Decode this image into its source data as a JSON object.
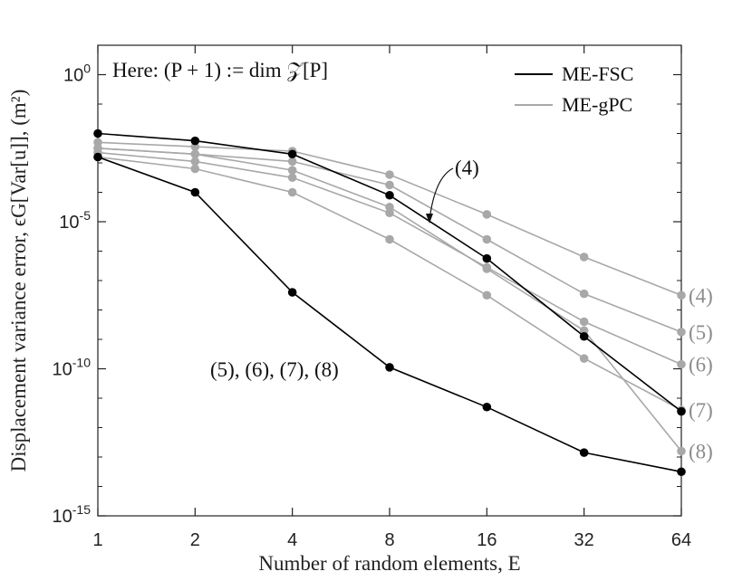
{
  "chart_data": {
    "type": "line",
    "xscale": "log2",
    "yscale": "log10",
    "x_ticks": [
      1,
      2,
      4,
      8,
      16,
      32,
      64
    ],
    "x_tick_labels": [
      "1",
      "2",
      "4",
      "8",
      "16",
      "32",
      "64"
    ],
    "y_ticks": [
      {
        "exp": 0,
        "base": "10",
        "power": "0"
      },
      {
        "exp": -5,
        "base": "10",
        "power": "-5"
      },
      {
        "exp": -10,
        "base": "10",
        "power": "-10"
      },
      {
        "exp": -15,
        "base": "10",
        "power": "-15"
      }
    ],
    "ylim_exp": [
      -15,
      1
    ],
    "xlabel": "Number of random elements, E",
    "ylabel": "Displacement variance error, ϵG[Var[u]], (m²)",
    "annotation": "Here: (P + 1) := dim 𝒵[P]",
    "legend": {
      "position": "top-right",
      "entries": [
        {
          "name": "ME-FSC",
          "color": "#000000"
        },
        {
          "name": "ME-gPC",
          "color": "#a8a8a8"
        }
      ]
    },
    "colors": {
      "fsc": "#000000",
      "gpc": "#a8a8a8",
      "anno_fsc": "#111111",
      "anno_gpc": "#8c8c8c"
    },
    "series": [
      {
        "name": "ME-FSC",
        "order_label": "(4)",
        "x": [
          1,
          2,
          4,
          8,
          16,
          32,
          64
        ],
        "log10_y": [
          -2.0,
          -2.25,
          -2.7,
          -4.1,
          -6.25,
          -8.9,
          -11.45
        ]
      },
      {
        "name": "ME-FSC",
        "order_label": "(5), (6), (7), (8)",
        "x": [
          1,
          2,
          4,
          8,
          16,
          32,
          64
        ],
        "log10_y": [
          -2.8,
          -4.0,
          -7.4,
          -9.95,
          -11.3,
          -12.85,
          -13.5
        ]
      },
      {
        "name": "ME-gPC",
        "order_label": "(4)",
        "x": [
          1,
          2,
          4,
          8,
          16,
          32,
          64
        ],
        "log10_y": [
          -2.3,
          -2.45,
          -2.6,
          -3.4,
          -4.75,
          -6.2,
          -7.5
        ]
      },
      {
        "name": "ME-gPC",
        "order_label": "(5)",
        "x": [
          1,
          2,
          4,
          8,
          16,
          32,
          64
        ],
        "log10_y": [
          -2.5,
          -2.7,
          -2.95,
          -3.75,
          -5.6,
          -7.45,
          -8.75
        ]
      },
      {
        "name": "ME-gPC",
        "order_label": "(6)",
        "x": [
          1,
          2,
          4,
          8,
          16,
          32,
          64
        ],
        "log10_y": [
          -2.65,
          -2.95,
          -3.5,
          -4.7,
          -6.55,
          -8.4,
          -9.85
        ]
      },
      {
        "name": "ME-gPC",
        "order_label": "(7)",
        "x": [
          1,
          2,
          4,
          8,
          16,
          32,
          64
        ],
        "log10_y": [
          -2.8,
          -3.2,
          -4.0,
          -5.6,
          -7.5,
          -9.65,
          -11.4
        ]
      },
      {
        "name": "ME-gPC",
        "order_label": "(8)",
        "x": [
          1,
          2,
          4,
          8,
          16,
          32,
          64
        ],
        "log10_y": [
          -2.5,
          -2.7,
          -3.25,
          -4.5,
          -6.6,
          -8.7,
          -12.8
        ]
      }
    ],
    "gpc_end_labels": [
      "(4)",
      "(5)",
      "(6)",
      "(7)",
      "(8)"
    ],
    "fsc_low_label": "(5), (6), (7), (8)",
    "fsc_arrow_label": "(4)",
    "grid": false
  }
}
